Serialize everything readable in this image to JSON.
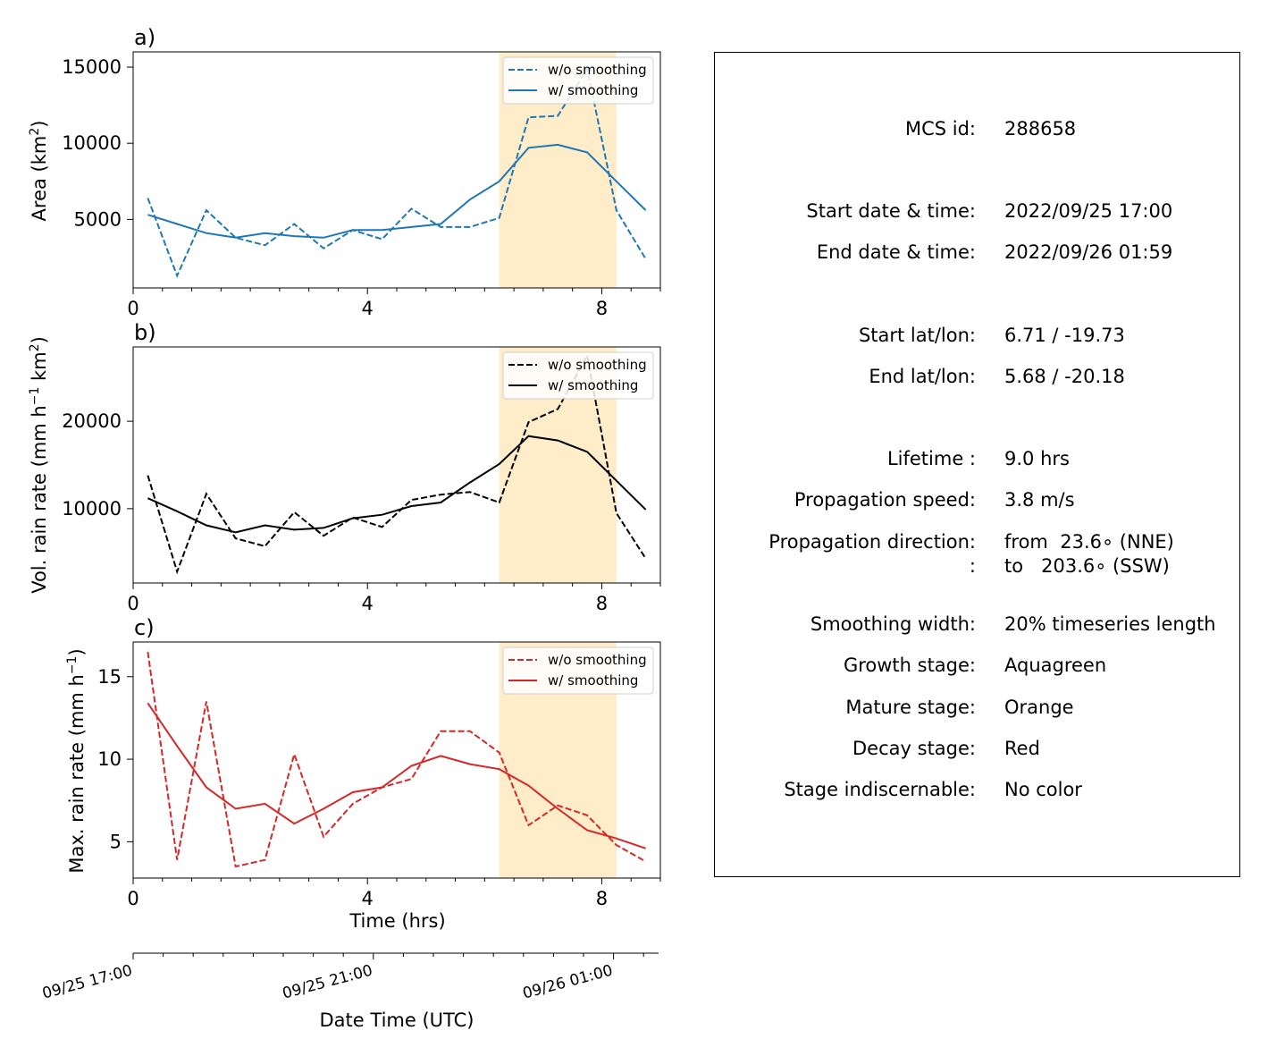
{
  "panels": [
    {
      "id": "a",
      "panel_label": "a)",
      "ylabel_main": "Area  (km",
      "ylabel_sup": "2",
      "ylabel_end": ")",
      "color": "#1f77b4",
      "legend": [
        "w/o smoothing",
        "w/ smoothing"
      ]
    },
    {
      "id": "b",
      "panel_label": "b)",
      "ylabel_main": "Vol. rain rate (mm h",
      "ylabel_sup1": "−1",
      "ylabel_mid": " km",
      "ylabel_sup2": "2",
      "ylabel_end": ")",
      "color": "#000000",
      "legend": [
        "w/o smoothing",
        "w/ smoothing"
      ]
    },
    {
      "id": "c",
      "panel_label": "c)",
      "ylabel_main": "Max. rain rate  (mm h",
      "ylabel_sup": "−1",
      "ylabel_end": ")",
      "color": "#d62728",
      "legend": [
        "w/o smoothing",
        "w/ smoothing"
      ]
    }
  ],
  "xlabel": "Time (hrs)",
  "datetime_axis": {
    "label": "Date Time (UTC)",
    "ticks": [
      "09/25 17:00",
      "09/25 21:00",
      "09/26 01:00"
    ]
  },
  "stage_color": "#ffecc8",
  "info": {
    "rows": [
      {
        "label": "MCS id:",
        "value": "288658"
      },
      {
        "label": "Start date & time:",
        "value": "2022/09/25 17:00"
      },
      {
        "label": "End date & time:",
        "value": "2022/09/26 01:59"
      },
      {
        "label": "Start lat/lon:",
        "value": "6.71 / -19.73"
      },
      {
        "label": "End lat/lon:",
        "value": "5.68 / -20.18"
      },
      {
        "label": "Lifetime :",
        "value": "9.0 hrs"
      },
      {
        "label": "Propagation speed:",
        "value": "3.8 m/s"
      },
      {
        "label": "Propagation direction:",
        "value": "from  23.6∘ (NNE)"
      },
      {
        "label": ":",
        "value": "to   203.6∘ (SSW)"
      },
      {
        "label": "Smoothing width:",
        "value": "20% timeseries length"
      },
      {
        "label": "Growth stage:",
        "value": "Aquagreen"
      },
      {
        "label": "Mature stage:",
        "value": "Orange"
      },
      {
        "label": "Decay stage:",
        "value": "Red"
      },
      {
        "label": "Stage indiscernable:",
        "value": "No color"
      }
    ]
  },
  "chart_data": [
    {
      "type": "line",
      "panel": "a",
      "ylabel": "Area  (km2)",
      "xlabel": "",
      "xlim": [
        0,
        9
      ],
      "ylim": [
        500,
        16000
      ],
      "xticks": [
        0,
        4,
        8
      ],
      "yticks": [
        5000,
        10000,
        15000
      ],
      "shaded_x": [
        6.25,
        8.25
      ],
      "x": [
        0.25,
        0.75,
        1.25,
        1.75,
        2.25,
        2.75,
        3.25,
        3.75,
        4.25,
        4.75,
        5.25,
        5.75,
        6.25,
        6.75,
        7.25,
        7.75,
        8.25,
        8.75
      ],
      "series": [
        {
          "name": "w/o smoothing",
          "style": "dashed",
          "values": [
            6400,
            1300,
            5600,
            3800,
            3300,
            4700,
            3100,
            4300,
            3700,
            5700,
            4500,
            4500,
            5100,
            11700,
            11800,
            14900,
            5600,
            2400
          ]
        },
        {
          "name": "w/ smoothing",
          "style": "solid",
          "values": [
            5300,
            4700,
            4100,
            3800,
            4100,
            3900,
            3800,
            4300,
            4300,
            4500,
            4700,
            6300,
            7500,
            9700,
            9900,
            9400,
            7500,
            5600
          ]
        }
      ]
    },
    {
      "type": "line",
      "panel": "b",
      "ylabel": "Vol. rain rate (mm h−1 km2)",
      "xlabel": "",
      "xlim": [
        0,
        9
      ],
      "ylim": [
        1500,
        28500
      ],
      "xticks": [
        0,
        4,
        8
      ],
      "yticks": [
        10000,
        20000
      ],
      "shaded_x": [
        6.25,
        8.25
      ],
      "x": [
        0.25,
        0.75,
        1.25,
        1.75,
        2.25,
        2.75,
        3.25,
        3.75,
        4.25,
        4.75,
        5.25,
        5.75,
        6.25,
        6.75,
        7.25,
        7.75,
        8.25,
        8.75
      ],
      "series": [
        {
          "name": "w/o smoothing",
          "style": "dashed",
          "values": [
            13800,
            2800,
            11700,
            6600,
            5700,
            9600,
            6900,
            9000,
            7900,
            11000,
            11600,
            11900,
            10700,
            19900,
            21400,
            27500,
            9500,
            4300
          ]
        },
        {
          "name": "w/ smoothing",
          "style": "solid",
          "values": [
            11200,
            9700,
            8100,
            7300,
            8100,
            7600,
            7800,
            8900,
            9300,
            10300,
            10700,
            13000,
            15100,
            18300,
            17800,
            16500,
            13200,
            9900
          ]
        }
      ]
    },
    {
      "type": "line",
      "panel": "c",
      "ylabel": "Max. rain rate  (mm h−1)",
      "xlabel": "Time (hrs)",
      "xlim": [
        0,
        9
      ],
      "ylim": [
        2.8,
        17.1
      ],
      "xticks": [
        0,
        4,
        8
      ],
      "yticks": [
        5,
        10,
        15
      ],
      "shaded_x": [
        6.25,
        8.25
      ],
      "x": [
        0.25,
        0.75,
        1.25,
        1.75,
        2.25,
        2.75,
        3.25,
        3.75,
        4.25,
        4.75,
        5.25,
        5.75,
        6.25,
        6.75,
        7.25,
        7.75,
        8.25,
        8.75
      ],
      "series": [
        {
          "name": "w/o smoothing",
          "style": "dashed",
          "values": [
            16.5,
            3.9,
            13.5,
            3.5,
            3.9,
            10.3,
            5.3,
            7.3,
            8.3,
            8.8,
            11.7,
            11.7,
            10.4,
            6.0,
            7.2,
            6.6,
            4.8,
            3.8
          ]
        },
        {
          "name": "w/ smoothing",
          "style": "solid",
          "values": [
            13.4,
            10.8,
            8.3,
            7.0,
            7.3,
            6.1,
            7.0,
            8.0,
            8.3,
            9.6,
            10.2,
            9.7,
            9.4,
            8.4,
            7.0,
            5.7,
            5.2,
            4.6
          ]
        }
      ]
    }
  ]
}
